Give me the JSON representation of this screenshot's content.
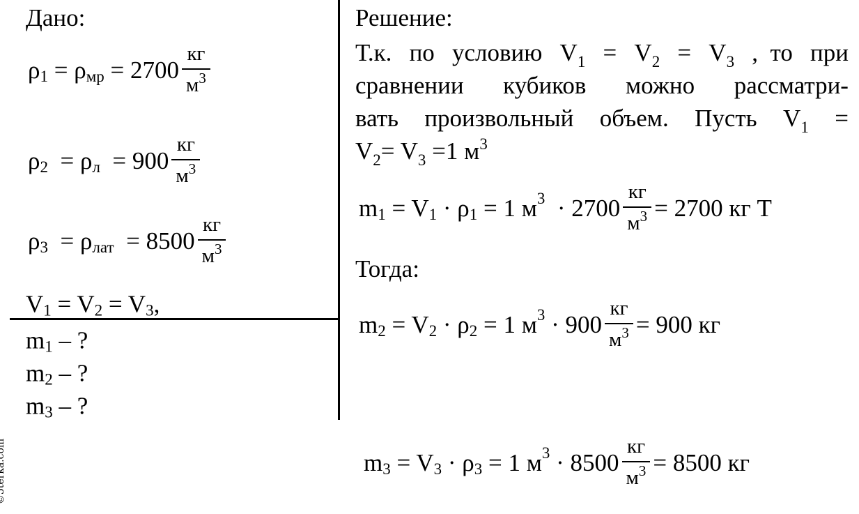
{
  "given": {
    "title": "Дано:",
    "rho1": [
      {
        "t": "ρ"
      },
      {
        "sub": "1"
      },
      {
        "t": " = ρ"
      },
      {
        "sub": "мр"
      },
      {
        "t": " = 2700"
      },
      {
        "num": "кг",
        "den": "м",
        "den_sup": "3"
      }
    ],
    "rho2": [
      {
        "t": "ρ"
      },
      {
        "sub": "2"
      },
      {
        "t": "  = ρ"
      },
      {
        "sub": "л"
      },
      {
        "t": "  = 900"
      },
      {
        "num": "кг",
        "den": "м",
        "den_sup": "3"
      }
    ],
    "rho3": [
      {
        "t": "ρ"
      },
      {
        "sub": "3"
      },
      {
        "t": "  = ρ"
      },
      {
        "sub": "лат"
      },
      {
        "t": "  = 8500"
      },
      {
        "num": "кг",
        "den": "м",
        "den_sup": "3"
      }
    ],
    "volumes": [
      {
        "t": "V"
      },
      {
        "sub": "1"
      },
      {
        "t": " = V"
      },
      {
        "sub": "2"
      },
      {
        "t": " = V"
      },
      {
        "sub": "3"
      },
      {
        "t": ","
      }
    ]
  },
  "find": [
    [
      {
        "t": "m"
      },
      {
        "sub": "1"
      },
      {
        "t": " – ?"
      }
    ],
    [
      {
        "t": "m"
      },
      {
        "sub": "2"
      },
      {
        "t": " – ?"
      }
    ],
    [
      {
        "t": "m"
      },
      {
        "sub": "3"
      },
      {
        "t": " – ?"
      }
    ]
  ],
  "solution": {
    "title": "Решение:",
    "paragraph": [
      [
        {
          "t": "Т.к."
        },
        {
          "t": "по"
        },
        {
          "t": "условию"
        },
        {
          "t": "V"
        },
        {
          "sub": "1"
        },
        {
          "t": "="
        },
        {
          "t": "V"
        },
        {
          "sub": "2"
        },
        {
          "t": "="
        },
        {
          "t": "V"
        },
        {
          "sub": "3"
        },
        {
          "t": ",  то"
        },
        {
          "t": "при"
        }
      ],
      [
        {
          "t": "сравнении"
        },
        {
          "t": "кубиков"
        },
        {
          "t": "можно"
        },
        {
          "t": "рассматри-"
        }
      ],
      [
        {
          "t": "вать"
        },
        {
          "t": "произвольный"
        },
        {
          "t": "объем."
        },
        {
          "t": "Пусть"
        },
        {
          "t": "V"
        },
        {
          "sub": "1"
        },
        {
          "t": "="
        }
      ],
      [
        {
          "t": "V"
        },
        {
          "sub": "2"
        },
        {
          "t": "= V"
        },
        {
          "sub": "3"
        },
        {
          "t": " =1 м"
        },
        {
          "sup": "3"
        }
      ]
    ],
    "m1": [
      {
        "t": "m"
      },
      {
        "sub": "1"
      },
      {
        "t": " = V"
      },
      {
        "sub": "1"
      },
      {
        "t": " · ρ"
      },
      {
        "sub": "1"
      },
      {
        "t": " = 1 м"
      },
      {
        "sup": "3"
      },
      {
        "t": "  · 2700"
      },
      {
        "num": "кг",
        "den": "м",
        "den_sup": "3"
      },
      {
        "t": "= 2700 кг Т"
      }
    ],
    "then": "Тогда:",
    "m2": [
      {
        "t": "m"
      },
      {
        "sub": "2"
      },
      {
        "t": " = V"
      },
      {
        "sub": "2"
      },
      {
        "t": " · ρ"
      },
      {
        "sub": "2"
      },
      {
        "t": " = 1 м"
      },
      {
        "sup": "3"
      },
      {
        "t": " · 900"
      },
      {
        "num": "кг",
        "den": "м",
        "den_sup": "3"
      },
      {
        "t": "= 900 кг"
      }
    ],
    "m3": [
      {
        "t": "m"
      },
      {
        "sub": "3"
      },
      {
        "t": " = V"
      },
      {
        "sub": "3"
      },
      {
        "t": " · ρ"
      },
      {
        "sub": "3"
      },
      {
        "t": " = 1 м"
      },
      {
        "sup": "3"
      },
      {
        "t": " · 8500"
      },
      {
        "num": "кг",
        "den": "м",
        "den_sup": "3"
      },
      {
        "t": "= 8500 кг"
      }
    ]
  },
  "watermark": "©5terka.com"
}
